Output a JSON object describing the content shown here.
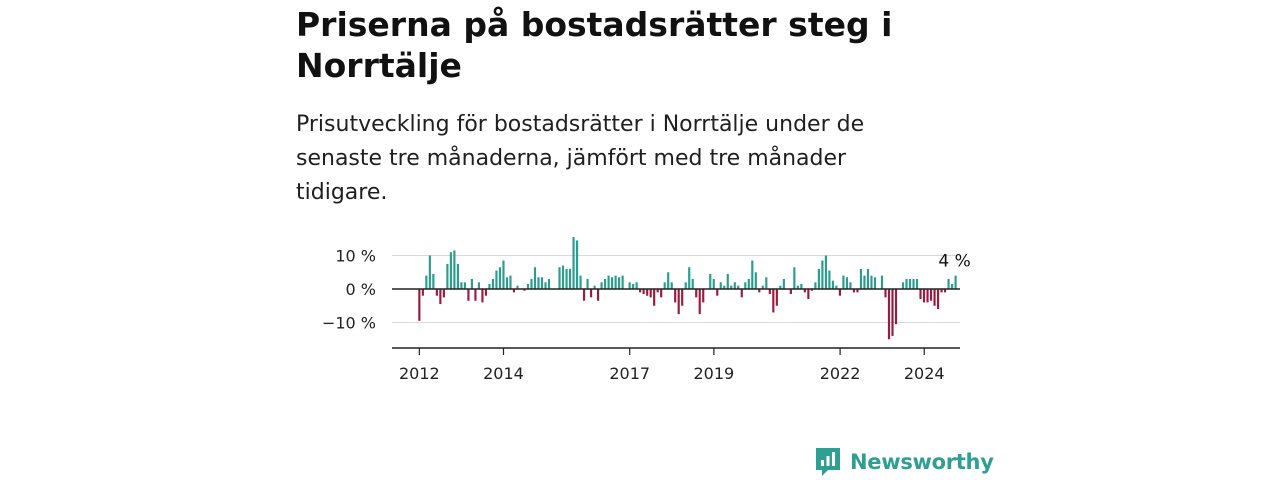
{
  "title": "Priserna på bostadsrätter steg i Norrtälje",
  "subtitle": "Prisutveckling för bostadsrätter i Norrtälje under de senaste tre månaderna, jämfört med tre månader tidigare.",
  "logo_text": "Newsworthy",
  "colors": {
    "positive": "#2a9d8f",
    "negative": "#9b1b3f",
    "brand": "#2f9e93"
  },
  "chart_data": {
    "type": "bar",
    "y_ticks": [
      {
        "value": 10,
        "label": "10 %"
      },
      {
        "value": 0,
        "label": "0 %"
      },
      {
        "value": -10,
        "label": "−10 %"
      }
    ],
    "x_ticks": [
      {
        "value": 2012,
        "label": "2012"
      },
      {
        "value": 2014,
        "label": "2014"
      },
      {
        "value": 2017,
        "label": "2017"
      },
      {
        "value": 2019,
        "label": "2019"
      },
      {
        "value": 2022,
        "label": "2022"
      },
      {
        "value": 2024,
        "label": "2024"
      }
    ],
    "ylim": [
      -17,
      13
    ],
    "xlim": [
      2011.35,
      2024.85
    ],
    "grid": true,
    "end_label": "4 %",
    "series": [
      {
        "start": 2012.0,
        "step": 0.0833,
        "values": [
          -9.5,
          -2,
          4,
          10,
          4.5,
          -2,
          -4.5,
          -2.5,
          7.5,
          11,
          11.5,
          7.5,
          2,
          2,
          -3.5,
          3,
          -3.5,
          2,
          -4,
          -2,
          1.5,
          3,
          5.5,
          6.5,
          8.5,
          3.5,
          4,
          -1,
          1,
          0,
          -0.5,
          1.5,
          3,
          6.5,
          3.5,
          3.5,
          2,
          3,
          0,
          0,
          6.5,
          7,
          6,
          6,
          15.5,
          14.5,
          4,
          -3.5,
          3,
          -2.5,
          1,
          -3.5,
          2,
          3,
          4,
          3.5,
          4,
          3.5,
          4,
          0,
          2,
          1.5,
          2,
          -1,
          -1.5,
          -2,
          -2.5,
          -5,
          -1,
          -2.5,
          2,
          5,
          2,
          -4,
          -7.5,
          -5,
          2,
          6.5,
          3,
          -2.5,
          -7.5,
          -4,
          0,
          4.5,
          3,
          -2,
          2,
          1,
          4.5,
          1,
          2,
          1,
          -2.5,
          2,
          3,
          8.5,
          5,
          -1,
          1,
          3.5,
          -1.5,
          -7,
          -5,
          1,
          3,
          0,
          -1.5,
          6.5,
          1,
          1.5,
          -1,
          -3,
          -0.5,
          2,
          6,
          8.5,
          10,
          5.5,
          2.5,
          1,
          -2,
          4,
          3.5,
          2,
          -1,
          -1,
          6,
          4,
          6,
          4,
          3.5,
          0,
          4,
          -2.5,
          -15,
          -14,
          -10.5,
          0,
          2,
          3,
          3,
          3,
          3,
          -3,
          -4,
          -4,
          -3.5,
          -5,
          -6,
          -1,
          -1,
          3,
          1.5,
          4
        ]
      }
    ]
  }
}
